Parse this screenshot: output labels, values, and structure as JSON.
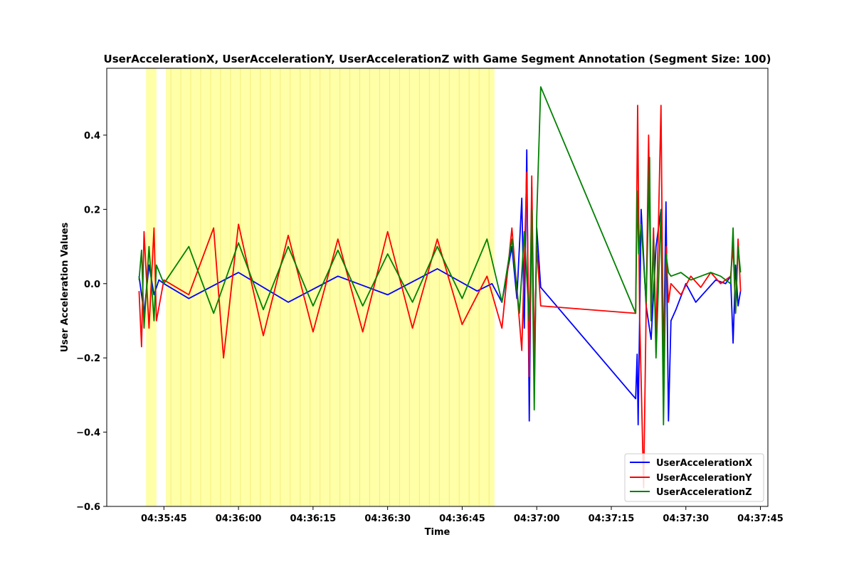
{
  "chart_data": {
    "type": "line",
    "title": "UserAccelerationX, UserAccelerationY, UserAccelerationZ with Game Segment Annotation (Segment Size: 100)",
    "xlabel": "Time",
    "ylabel": "User Acceleration Values",
    "x_tick_labels": [
      "04:35:45",
      "04:36:00",
      "04:36:15",
      "04:36:30",
      "04:36:45",
      "04:37:00",
      "04:37:15",
      "04:37:30",
      "04:37:45"
    ],
    "x_ticks_seconds": [
      45,
      60,
      75,
      90,
      105,
      120,
      135,
      150,
      165
    ],
    "x_range_seconds": [
      33.5,
      166.5
    ],
    "ylim": [
      -0.6,
      0.58
    ],
    "y_ticks": [
      -0.6,
      -0.4,
      -0.2,
      0.0,
      0.2,
      0.4
    ],
    "y_tick_labels": [
      "−0.6",
      "−0.4",
      "−0.2",
      "0.0",
      "0.2",
      "0.4"
    ],
    "legend_position": "bottom-right",
    "grid": false,
    "annotation_color": "#ffff99",
    "annotation_segments_seconds": [
      [
        41.4,
        43.5
      ],
      [
        45.4,
        111.5
      ]
    ],
    "series": [
      {
        "name": "UserAccelerationX",
        "color": "#0000ff",
        "x_seconds": [
          40.0,
          41.0,
          42.0,
          43.0,
          44.0,
          45.0,
          50.0,
          60.0,
          70.0,
          80.0,
          90.0,
          100.0,
          108.0,
          111.0,
          113.0,
          115.0,
          116.0,
          117.0,
          117.5,
          118.0,
          118.5,
          119.0,
          119.5,
          120.0,
          120.8,
          139.9,
          140.2,
          140.4,
          141.0,
          142.0,
          143.0,
          144.0,
          145.0,
          145.5,
          146.0,
          146.5,
          147.0,
          148.0,
          150.0,
          152.0,
          154.0,
          156.0,
          158.0,
          159.0,
          159.5,
          160.0,
          160.5,
          161.0
        ],
        "values": [
          0.02,
          -0.08,
          0.05,
          -0.03,
          0.01,
          0.0,
          -0.04,
          0.03,
          -0.05,
          0.02,
          -0.03,
          0.04,
          -0.02,
          0.0,
          -0.05,
          0.1,
          -0.04,
          0.23,
          -0.12,
          0.36,
          -0.37,
          0.26,
          -0.28,
          0.15,
          -0.01,
          -0.31,
          -0.19,
          -0.38,
          0.2,
          -0.06,
          -0.15,
          0.1,
          0.2,
          -0.22,
          0.22,
          -0.37,
          -0.1,
          -0.07,
          0.0,
          -0.05,
          -0.02,
          0.01,
          0.0,
          0.02,
          -0.16,
          0.05,
          -0.06,
          -0.02
        ]
      },
      {
        "name": "UserAccelerationY",
        "color": "#ff0000",
        "x_seconds": [
          40.0,
          40.5,
          41.0,
          42.0,
          43.0,
          43.5,
          45.0,
          50.0,
          55.0,
          57.0,
          60.0,
          65.0,
          70.0,
          75.0,
          80.0,
          85.0,
          90.0,
          95.0,
          100.0,
          105.0,
          110.0,
          113.0,
          115.0,
          117.0,
          118.0,
          118.5,
          119.0,
          119.5,
          120.0,
          120.8,
          139.9,
          140.3,
          140.7,
          141.5,
          142.5,
          143.0,
          143.5,
          144.0,
          145.0,
          145.5,
          146.0,
          146.5,
          147.0,
          149.0,
          151.0,
          153.0,
          155.0,
          157.0,
          159.0,
          159.5,
          160.0,
          160.5,
          161.0
        ],
        "values": [
          -0.02,
          -0.17,
          0.14,
          -0.12,
          0.15,
          -0.1,
          0.01,
          -0.03,
          0.15,
          -0.2,
          0.16,
          -0.14,
          0.13,
          -0.13,
          0.12,
          -0.13,
          0.14,
          -0.12,
          0.12,
          -0.11,
          0.02,
          -0.12,
          0.15,
          -0.18,
          0.3,
          -0.25,
          0.29,
          -0.2,
          0.1,
          -0.06,
          -0.08,
          0.48,
          -0.09,
          -0.55,
          0.4,
          -0.1,
          0.15,
          -0.15,
          0.48,
          -0.26,
          0.1,
          -0.05,
          0.0,
          -0.03,
          0.02,
          -0.01,
          0.03,
          0.0,
          0.02,
          0.1,
          -0.08,
          0.12,
          -0.02
        ]
      },
      {
        "name": "UserAccelerationZ",
        "color": "#008000",
        "x_seconds": [
          40.0,
          40.5,
          41.0,
          42.0,
          43.0,
          43.5,
          45.0,
          50.0,
          55.0,
          60.0,
          65.0,
          70.0,
          75.0,
          80.0,
          85.0,
          90.0,
          95.0,
          100.0,
          105.0,
          110.0,
          113.0,
          115.0,
          116.5,
          117.5,
          118.5,
          119.0,
          119.5,
          120.0,
          120.8,
          139.9,
          140.2,
          140.5,
          141.0,
          142.0,
          142.7,
          143.0,
          143.5,
          144.0,
          145.0,
          145.5,
          146.0,
          146.5,
          147.0,
          149.0,
          151.0,
          153.0,
          155.0,
          157.0,
          159.0,
          159.5,
          160.0,
          160.5,
          161.0
        ],
        "values": [
          0.01,
          0.09,
          -0.12,
          0.1,
          -0.1,
          0.05,
          0.0,
          0.1,
          -0.08,
          0.11,
          -0.07,
          0.1,
          -0.06,
          0.09,
          -0.06,
          0.08,
          -0.05,
          0.1,
          -0.04,
          0.12,
          -0.05,
          0.12,
          -0.08,
          0.14,
          -0.1,
          0.2,
          -0.34,
          0.18,
          0.53,
          -0.08,
          0.25,
          0.08,
          0.16,
          -0.05,
          0.34,
          -0.1,
          0.12,
          -0.2,
          0.2,
          -0.38,
          0.08,
          0.03,
          0.02,
          0.03,
          0.01,
          0.02,
          0.03,
          0.02,
          0.0,
          0.15,
          -0.08,
          0.1,
          0.03
        ]
      }
    ]
  }
}
